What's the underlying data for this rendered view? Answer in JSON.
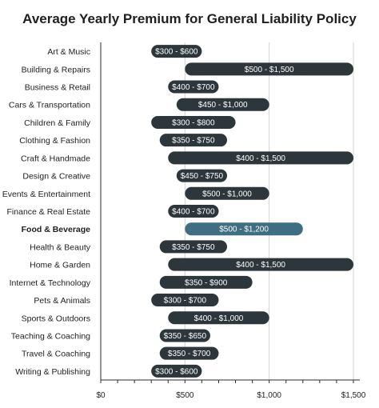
{
  "chart_data": {
    "type": "bar",
    "orientation": "horizontal-range",
    "title": "Average Yearly Premium for General Liability Policy",
    "xlabel": "",
    "ylabel": "",
    "xlim": [
      0,
      1500
    ],
    "grid": true,
    "x_ticks": [
      0,
      500,
      1000,
      1500
    ],
    "x_tick_labels": [
      "$0",
      "$500",
      "$1,000",
      "$1,500"
    ],
    "colors": {
      "bar": "#2c363b",
      "highlight": "#3f6e82",
      "grid": "#d3d3d3"
    },
    "highlight_category": "Food & Beverage",
    "categories": [
      "Art & Music",
      "Building & Repairs",
      "Business & Retail",
      "Cars & Transportation",
      "Children & Family",
      "Clothing & Fashion",
      "Craft & Handmade",
      "Design & Creative",
      "Events & Entertainment",
      "Finance & Real Estate",
      "Food & Beverage",
      "Health & Beauty",
      "Home & Garden",
      "Internet & Technology",
      "Pets & Animals",
      "Sports & Outdoors",
      "Teaching & Coaching",
      "Travel & Coaching",
      "Writing & Publishing"
    ],
    "ranges": [
      {
        "low": 300,
        "high": 600,
        "label": "$300 - $600"
      },
      {
        "low": 500,
        "high": 1500,
        "label": "$500 - $1,500"
      },
      {
        "low": 400,
        "high": 700,
        "label": "$400 - $700"
      },
      {
        "low": 450,
        "high": 1000,
        "label": "$450 - $1,000"
      },
      {
        "low": 300,
        "high": 800,
        "label": "$300 - $800"
      },
      {
        "low": 350,
        "high": 750,
        "label": "$350 - $750"
      },
      {
        "low": 400,
        "high": 1500,
        "label": "$400 - $1,500"
      },
      {
        "low": 450,
        "high": 750,
        "label": "$450 - $750"
      },
      {
        "low": 500,
        "high": 1000,
        "label": "$500 - $1,000"
      },
      {
        "low": 400,
        "high": 700,
        "label": "$400 - $700"
      },
      {
        "low": 500,
        "high": 1200,
        "label": "$500 - $1,200"
      },
      {
        "low": 350,
        "high": 750,
        "label": "$350 - $750"
      },
      {
        "low": 400,
        "high": 1500,
        "label": "$400 - $1,500"
      },
      {
        "low": 350,
        "high": 900,
        "label": "$350 - $900"
      },
      {
        "low": 300,
        "high": 700,
        "label": "$300 - $700"
      },
      {
        "low": 400,
        "high": 1000,
        "label": "$400 - $1,000"
      },
      {
        "low": 350,
        "high": 650,
        "label": "$350 - $650"
      },
      {
        "low": 350,
        "high": 700,
        "label": "$350 - $700"
      },
      {
        "low": 300,
        "high": 600,
        "label": "$300 - $600"
      }
    ]
  }
}
